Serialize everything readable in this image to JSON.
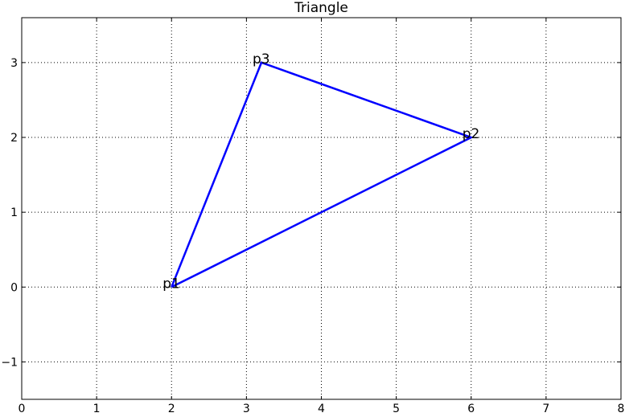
{
  "chart_data": {
    "type": "line",
    "title": "Triangle",
    "xlabel": "",
    "ylabel": "",
    "xlim": [
      0,
      8
    ],
    "ylim": [
      -1.5,
      3.6
    ],
    "xticks": [
      0,
      1,
      2,
      3,
      4,
      5,
      6,
      7,
      8
    ],
    "yticks": [
      -1,
      0,
      1,
      2,
      3
    ],
    "xtick_labels": [
      "0",
      "1",
      "2",
      "3",
      "4",
      "5",
      "6",
      "7",
      "8"
    ],
    "ytick_labels": [
      "−1",
      "0",
      "1",
      "2",
      "3"
    ],
    "grid": true,
    "grid_style": "dotted",
    "series": [
      {
        "color": "#0000ff",
        "x": [
          2,
          6,
          3.2,
          2
        ],
        "y": [
          0,
          2,
          3,
          0
        ]
      }
    ],
    "annotations": [
      {
        "text": "p1",
        "x": 2,
        "y": 0
      },
      {
        "text": "p2",
        "x": 6,
        "y": 2
      },
      {
        "text": "p3",
        "x": 3.2,
        "y": 3
      }
    ]
  }
}
